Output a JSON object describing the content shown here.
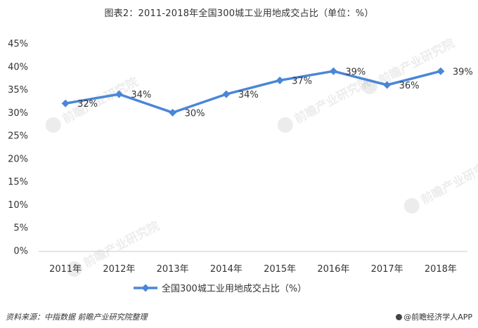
{
  "title": "图表2：2011-2018年全国300城工业用地成交占比（单位：%）",
  "source": "资料来源：中指数据 前瞻产业研究院整理",
  "brand": "@前瞻经济学人APP",
  "watermark": "前瞻产业研究院",
  "chart_data": {
    "type": "line",
    "title": "图表2：2011-2018年全国300城工业用地成交占比（单位：%）",
    "categories": [
      "2011年",
      "2012年",
      "2013年",
      "2014年",
      "2015年",
      "2016年",
      "2017年",
      "2018年"
    ],
    "series": [
      {
        "name": "全国300城工业用地成交占比（%）",
        "values": [
          32,
          34,
          30,
          34,
          37,
          39,
          36,
          39
        ],
        "labels": [
          "32%",
          "34%",
          "30%",
          "34%",
          "37%",
          "39%",
          "36%",
          "39%"
        ],
        "color": "#4a86d8"
      }
    ],
    "ylim": [
      0,
      45
    ],
    "yticks": [
      0,
      5,
      10,
      15,
      20,
      25,
      30,
      35,
      40,
      45
    ],
    "ytick_labels": [
      "0%",
      "5%",
      "10%",
      "15%",
      "20%",
      "25%",
      "30%",
      "35%",
      "40%",
      "45%"
    ],
    "grid": false,
    "legend": "bottom"
  }
}
